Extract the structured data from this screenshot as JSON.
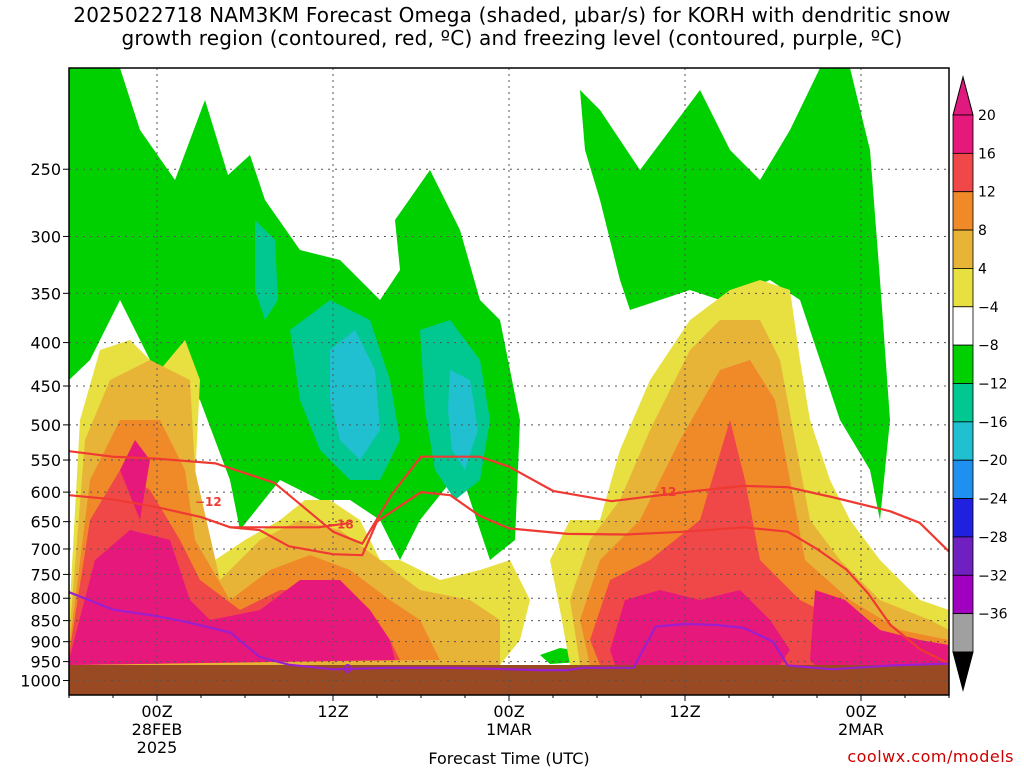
{
  "title_line1": "2025022718 NAM3KM Forecast Omega (shaded, μbar/s) for KORH with dendritic snow",
  "title_line2": "growth region (contoured, red, ºC) and freezing level (contoured, purple, ºC)",
  "credit": "coolwx.com/models",
  "chart_data": {
    "type": "heatmap",
    "title": "2025022718 NAM3KM Forecast Omega (shaded, μbar/s) for KORH with dendritic snow growth region (contoured, red, ºC) and freezing level (contoured, purple, ºC)",
    "xlabel": "Forecast Time (UTC)",
    "ylabel": "",
    "x_range_hours": [
      18,
      78
    ],
    "x_ticks": [
      {
        "hour": 24,
        "labels": [
          "00Z",
          "28FEB",
          "2025"
        ]
      },
      {
        "hour": 36,
        "labels": [
          "12Z"
        ]
      },
      {
        "hour": 48,
        "labels": [
          "00Z",
          "1MAR"
        ]
      },
      {
        "hour": 60,
        "labels": [
          "12Z"
        ]
      },
      {
        "hour": 72,
        "labels": [
          "00Z",
          "2MAR"
        ]
      }
    ],
    "y_scale": "log-pressure",
    "ylim": [
      1040,
      190
    ],
    "y_ticks": [
      250,
      300,
      350,
      400,
      450,
      500,
      550,
      600,
      650,
      700,
      750,
      800,
      850,
      900,
      950,
      1000
    ],
    "surface_pressure": 980,
    "colorbar": {
      "labels": [
        "20",
        "16",
        "12",
        "8",
        "4",
        "−4",
        "−8",
        "−12",
        "−16",
        "−20",
        "−24",
        "−28",
        "−32",
        "−36"
      ],
      "colors": [
        "#e6187c",
        "#f04848",
        "#f08a28",
        "#e8b438",
        "#e8e040",
        "#ffffff",
        "#00d000",
        "#00c890",
        "#20c0d0",
        "#2090f0",
        "#2020e0",
        "#7020c0",
        "#a000c0",
        "#a0a0a0"
      ],
      "top_arrow_color": "#e0197f",
      "bottom_arrow_color": "#000000"
    },
    "colors": {
      "ground": "#9a4a22",
      "dgz_contour": "#ee3a33",
      "freezing_contour": "#9b1fce",
      "grid": "#555555"
    },
    "contours": [
      {
        "name": "dgz_minus12_upper",
        "label": "−12",
        "label_at": [
          58.5,
          598
        ],
        "points": [
          [
            18,
            537
          ],
          [
            21,
            545
          ],
          [
            24,
            548
          ],
          [
            28,
            555
          ],
          [
            32,
            585
          ],
          [
            34,
            625
          ],
          [
            36,
            668
          ],
          [
            38,
            690
          ],
          [
            40,
            604
          ],
          [
            42,
            545
          ],
          [
            46,
            545
          ],
          [
            48,
            560
          ],
          [
            51,
            598
          ],
          [
            55,
            615
          ],
          [
            60,
            600
          ],
          [
            64,
            590
          ],
          [
            67,
            592
          ],
          [
            70,
            608
          ],
          [
            74,
            632
          ],
          [
            76,
            652
          ],
          [
            78,
            705
          ]
        ]
      },
      {
        "name": "dgz_minus12_lower",
        "label": "−12",
        "label_at": [
          27.5,
          615
        ],
        "points": [
          [
            18,
            605
          ],
          [
            21,
            612
          ],
          [
            24,
            625
          ],
          [
            27,
            642
          ],
          [
            29,
            660
          ],
          [
            31,
            665
          ],
          [
            33,
            695
          ],
          [
            36,
            710
          ],
          [
            38,
            712
          ],
          [
            39,
            650
          ],
          [
            42,
            600
          ],
          [
            44,
            605
          ],
          [
            46,
            640
          ],
          [
            48,
            662
          ],
          [
            52,
            672
          ],
          [
            56,
            673
          ],
          [
            60,
            668
          ],
          [
            64,
            660
          ],
          [
            67,
            668
          ],
          [
            69,
            700
          ],
          [
            71,
            740
          ],
          [
            72.5,
            790
          ],
          [
            74,
            860
          ],
          [
            76,
            918
          ],
          [
            78,
            955
          ]
        ]
      },
      {
        "name": "dgz_minus18",
        "label": "−18",
        "label_at": [
          36.5,
          653
        ],
        "points": [
          [
            29,
            660
          ],
          [
            32,
            660
          ],
          [
            35,
            660
          ],
          [
            37,
            653
          ]
        ]
      },
      {
        "name": "freezing_level_0C",
        "label": "0",
        "label_at": [
          37.0,
          966
        ],
        "points": [
          [
            18,
            787
          ],
          [
            21,
            825
          ],
          [
            24,
            840
          ],
          [
            26,
            853
          ],
          [
            29,
            878
          ],
          [
            31,
            938
          ],
          [
            33,
            958
          ],
          [
            36,
            970
          ],
          [
            40,
            966
          ],
          [
            44,
            966
          ],
          [
            47,
            969
          ],
          [
            50,
            972
          ],
          [
            52,
            972
          ],
          [
            53,
            966
          ],
          [
            56.5,
            966
          ],
          [
            57,
            930
          ],
          [
            58,
            864
          ],
          [
            60,
            858
          ],
          [
            62,
            860
          ],
          [
            64,
            867
          ],
          [
            66,
            900
          ],
          [
            67,
            960
          ],
          [
            70,
            970
          ],
          [
            74,
            960
          ],
          [
            78,
            955
          ]
        ]
      }
    ],
    "omega_regions": [
      {
        "value_class": "20",
        "color": "#e6187c",
        "description": "strong ascent core below 650 hPa near 00Z 28FEB and 12Z 28FEB, and 12Z-18Z 1MAR"
      },
      {
        "value_class": "−4 to −16",
        "color": "#00d000",
        "description": "descent aloft between 250 and 650 hPa"
      }
    ]
  }
}
